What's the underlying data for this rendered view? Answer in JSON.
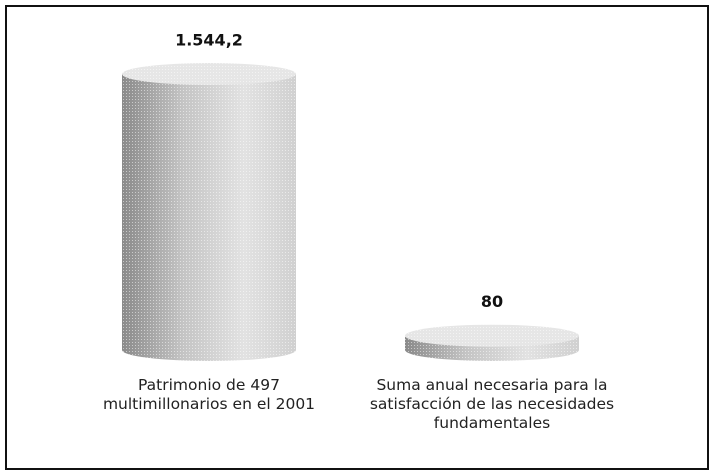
{
  "chart_data": {
    "type": "cylinder",
    "categories": [
      "Patrimonio de 497 multimillonarios en el 2001",
      "Suma anual necesaria para la satisfacción de las necesidades fundamentales"
    ],
    "values": [
      1544.2,
      80
    ],
    "value_labels": [
      "1.544,2",
      "80"
    ],
    "color": "#b0b0b0"
  }
}
